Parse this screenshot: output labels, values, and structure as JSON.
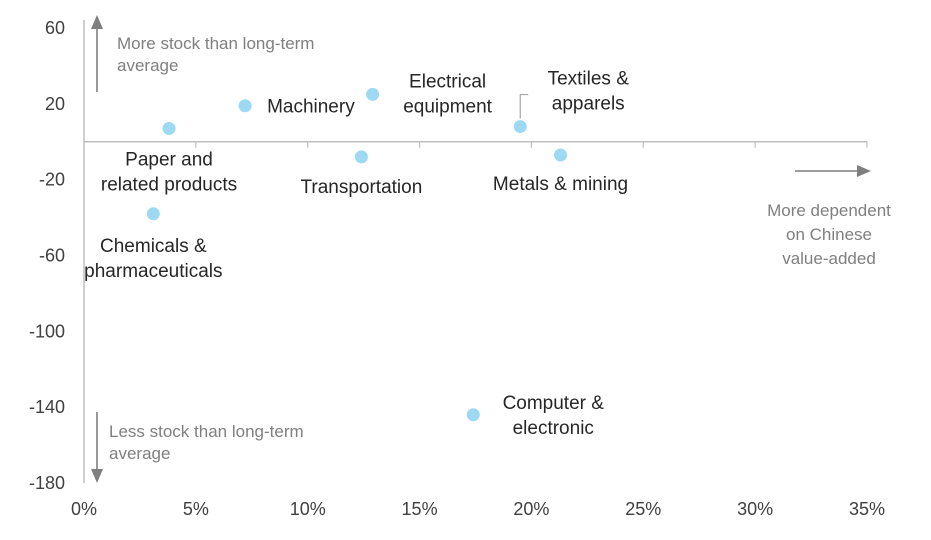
{
  "chart_data": {
    "type": "scatter",
    "xlim": [
      0,
      35
    ],
    "ylim": [
      -180,
      60
    ],
    "x_ticks": [
      "0%",
      "5%",
      "10%",
      "15%",
      "20%",
      "25%",
      "30%",
      "35%"
    ],
    "y_ticks": [
      "60",
      "20",
      "-20",
      "-60",
      "-100",
      "-140",
      "-180"
    ],
    "grid": false,
    "marker_color": "#9dd9f3",
    "points": [
      {
        "label": [
          "Paper and",
          "related products"
        ],
        "x": 3.8,
        "y": 7
      },
      {
        "label": [
          "Machinery"
        ],
        "x": 7.2,
        "y": 19
      },
      {
        "label": [
          "Electrical",
          "equipment"
        ],
        "x": 12.9,
        "y": 25
      },
      {
        "label": [
          "Transportation"
        ],
        "x": 12.4,
        "y": -8
      },
      {
        "label": [
          "Textiles &",
          "apparels"
        ],
        "x": 19.5,
        "y": 8
      },
      {
        "label": [
          "Metals & mining"
        ],
        "x": 21.3,
        "y": -7
      },
      {
        "label": [
          "Chemicals &",
          "pharmaceuticals"
        ],
        "x": 3.1,
        "y": -38
      },
      {
        "label": [
          "Computer &",
          "electronic"
        ],
        "x": 17.4,
        "y": -144
      }
    ],
    "annotations": {
      "top": [
        "More stock than long-term",
        "average"
      ],
      "bottom": [
        "Less stock than long-term",
        "average"
      ],
      "right": [
        "More dependent",
        "on Chinese",
        "value-added"
      ]
    }
  }
}
